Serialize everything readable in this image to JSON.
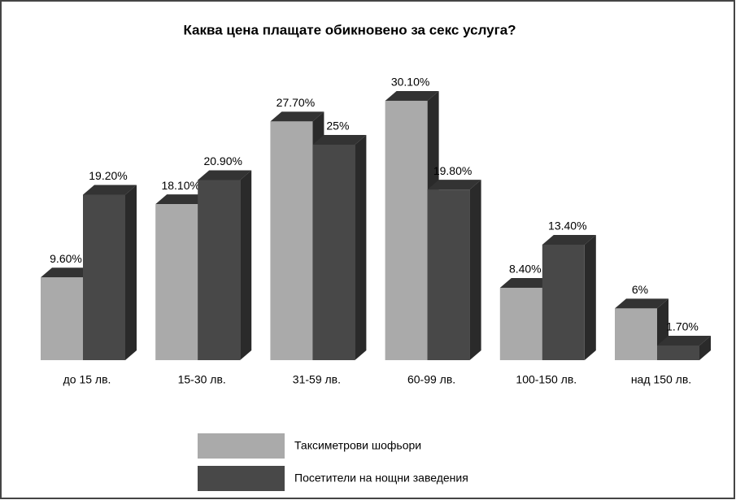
{
  "chart_data": {
    "type": "bar3d",
    "title": "Каква цена плащате обикновено за секс услуга?",
    "categories": [
      "до 15 лв.",
      "15-30 лв.",
      "31-59 лв.",
      "60-99 лв.",
      "100-150 лв.",
      "над 150 лв."
    ],
    "series": [
      {
        "name": "Таксиметрови шофьори",
        "color": "#aaaaaa",
        "values": [
          9.6,
          18.1,
          27.7,
          30.1,
          8.4,
          6
        ],
        "value_labels": [
          "9.60%",
          "18.10%",
          "27.70%",
          "30.10%",
          "8.40%",
          "6%"
        ]
      },
      {
        "name": "Посетители на нощни заведения",
        "color": "#484848",
        "values": [
          19.2,
          20.9,
          25,
          19.8,
          13.4,
          1.7
        ],
        "value_labels": [
          "19.20%",
          "20.90%",
          "25%",
          "19.80%",
          "13.40%",
          "1.70%"
        ]
      }
    ]
  }
}
